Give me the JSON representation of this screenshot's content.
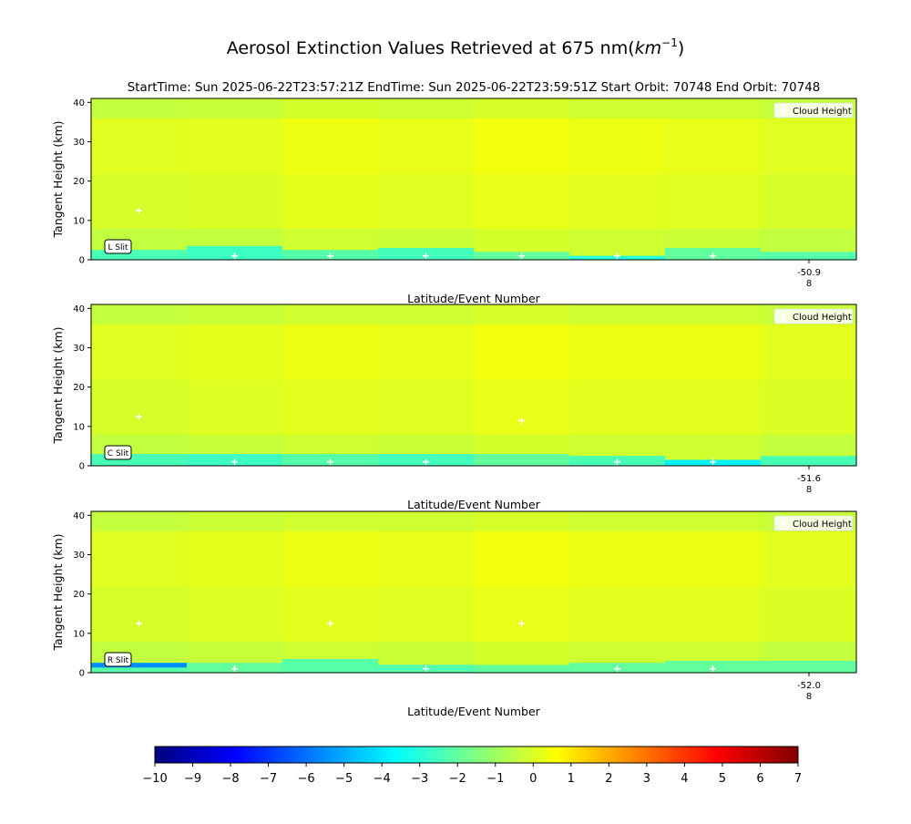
{
  "title_prefix": "Aerosol Extinction Values Retrieved at 675 nm(",
  "title_unit_base": "km",
  "title_unit_exp": "−1",
  "title_suffix": ")",
  "subtitle": "StartTime: Sun 2025-06-22T23:57:21Z  EndTime: Sun 2025-06-22T23:59:51Z  Start Orbit: 70748 End Orbit: 70748",
  "colors": {
    "background": "#c6ff30",
    "cloud_marker": "#ffffff",
    "legend_bg": "#ffffff"
  },
  "colorbar": {
    "colormap": "jet",
    "min": -10,
    "max": 7,
    "ticks": [
      "−10",
      "−9",
      "−8",
      "−7",
      "−6",
      "−5",
      "−4",
      "−3",
      "−2",
      "−1",
      "0",
      "1",
      "2",
      "3",
      "4",
      "5",
      "6",
      "7"
    ]
  },
  "chart_data": [
    {
      "type": "heatmap",
      "slit_label": "L Slit",
      "ylabel": "Tangent Height (km)",
      "xlabel": "Latitude/Event Number",
      "legend": "Cloud Height",
      "ylim": [
        0,
        41
      ],
      "yticks": [
        "0",
        "10",
        "20",
        "30",
        "40"
      ],
      "x_tick_value": "-50.9",
      "x_tick_event": "8",
      "x_tick_column": 7.5,
      "n_columns": 8,
      "base_value": 0,
      "column_offsets": [
        0.1,
        0.15,
        0.35,
        0.25,
        0.4,
        0.3,
        0.25,
        0.1
      ],
      "low_layers": [
        {
          "column": 0,
          "ymin": 0,
          "ymax": 2.5,
          "value": -2.4
        },
        {
          "column": 1,
          "ymin": 0,
          "ymax": 3.5,
          "value": -2.6
        },
        {
          "column": 2,
          "ymin": 0,
          "ymax": 2.5,
          "value": -2.2
        },
        {
          "column": 3,
          "ymin": 0,
          "ymax": 3,
          "value": -2.5
        },
        {
          "column": 4,
          "ymin": 0,
          "ymax": 2,
          "value": -2.0
        },
        {
          "column": 5,
          "ymin": 0,
          "ymax": 1,
          "value": -3.0
        },
        {
          "column": 6,
          "ymin": 0,
          "ymax": 3,
          "value": -2.0
        },
        {
          "column": 7,
          "ymin": 0,
          "ymax": 2,
          "value": -2.2
        }
      ],
      "cloud_heights": [
        {
          "column": 0.5,
          "height": 12.5
        },
        {
          "column": 1.5,
          "height": 1
        },
        {
          "column": 2.5,
          "height": 1
        },
        {
          "column": 3.5,
          "height": 1
        },
        {
          "column": 4.5,
          "height": 1
        },
        {
          "column": 5.5,
          "height": 1
        },
        {
          "column": 6.5,
          "height": 1
        }
      ]
    },
    {
      "type": "heatmap",
      "slit_label": "C Slit",
      "ylabel": "Tangent Height (km)",
      "xlabel": "Latitude/Event Number",
      "legend": "Cloud Height",
      "ylim": [
        0,
        41
      ],
      "yticks": [
        "0",
        "10",
        "20",
        "30",
        "40"
      ],
      "x_tick_value": "-51.6",
      "x_tick_event": "8",
      "x_tick_column": 7.5,
      "n_columns": 8,
      "base_value": 0,
      "column_offsets": [
        0.1,
        0.2,
        0.3,
        0.25,
        0.4,
        0.3,
        0.3,
        0.15
      ],
      "low_layers": [
        {
          "column": 0,
          "ymin": 0,
          "ymax": 3,
          "value": -2.4
        },
        {
          "column": 1,
          "ymin": 0,
          "ymax": 3,
          "value": -2.6
        },
        {
          "column": 2,
          "ymin": 0,
          "ymax": 3,
          "value": -2.2
        },
        {
          "column": 3,
          "ymin": 0,
          "ymax": 3,
          "value": -2.5
        },
        {
          "column": 4,
          "ymin": 0,
          "ymax": 3,
          "value": -2.0
        },
        {
          "column": 5,
          "ymin": 0,
          "ymax": 2.5,
          "value": -2.4
        },
        {
          "column": 6,
          "ymin": 0,
          "ymax": 1.5,
          "value": -3.8
        },
        {
          "column": 7,
          "ymin": 0,
          "ymax": 2.5,
          "value": -2.4
        }
      ],
      "cloud_heights": [
        {
          "column": 0.5,
          "height": 12.5
        },
        {
          "column": 1.5,
          "height": 1
        },
        {
          "column": 2.5,
          "height": 1
        },
        {
          "column": 3.5,
          "height": 1
        },
        {
          "column": 4.5,
          "height": 11.5
        },
        {
          "column": 5.5,
          "height": 1
        },
        {
          "column": 6.5,
          "height": 1
        }
      ]
    },
    {
      "type": "heatmap",
      "slit_label": "R Slit",
      "ylabel": "Tangent Height (km)",
      "xlabel": "Latitude/Event Number",
      "legend": "Cloud Height",
      "ylim": [
        0,
        41
      ],
      "yticks": [
        "0",
        "10",
        "20",
        "30",
        "40"
      ],
      "x_tick_value": "-52.0",
      "x_tick_event": "8",
      "x_tick_column": 7.5,
      "n_columns": 8,
      "base_value": 0,
      "column_offsets": [
        0.1,
        0.2,
        0.3,
        0.25,
        0.4,
        0.3,
        0.3,
        0.15
      ],
      "low_layers": [
        {
          "column": 0,
          "ymin": 0,
          "ymax": 2.5,
          "value": -2.2
        },
        {
          "column": 0,
          "ymin": 1.3,
          "ymax": 2.5,
          "value": -5.5
        },
        {
          "column": 1,
          "ymin": 0,
          "ymax": 2.5,
          "value": -2.0
        },
        {
          "column": 2,
          "ymin": 0,
          "ymax": 3.5,
          "value": -2.2
        },
        {
          "column": 3,
          "ymin": 0,
          "ymax": 2,
          "value": -2.3
        },
        {
          "column": 4,
          "ymin": 0,
          "ymax": 2,
          "value": -2.0
        },
        {
          "column": 5,
          "ymin": 0,
          "ymax": 2.5,
          "value": -2.0
        },
        {
          "column": 6,
          "ymin": 0,
          "ymax": 3,
          "value": -2.0
        },
        {
          "column": 7,
          "ymin": 0,
          "ymax": 3,
          "value": -2.0
        }
      ],
      "cloud_heights": [
        {
          "column": 0.5,
          "height": 12.5
        },
        {
          "column": 1.5,
          "height": 1
        },
        {
          "column": 2.5,
          "height": 12.5
        },
        {
          "column": 3.5,
          "height": 1
        },
        {
          "column": 4.5,
          "height": 12.5
        },
        {
          "column": 5.5,
          "height": 1
        },
        {
          "column": 6.5,
          "height": 1
        }
      ]
    }
  ]
}
